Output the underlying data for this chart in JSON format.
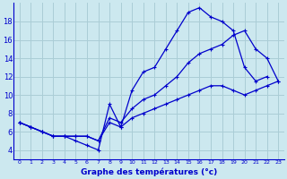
{
  "title": "Graphe des températures (°c)",
  "bg_color": "#cce8ef",
  "grid_color": "#aacdd6",
  "line_color": "#0000cc",
  "xlim": [
    -0.5,
    23.5
  ],
  "ylim": [
    3,
    20
  ],
  "xticks": [
    0,
    1,
    2,
    3,
    4,
    5,
    6,
    7,
    8,
    9,
    10,
    11,
    12,
    13,
    14,
    15,
    16,
    17,
    18,
    19,
    20,
    21,
    22,
    23
  ],
  "yticks": [
    4,
    6,
    8,
    10,
    12,
    14,
    16,
    18
  ],
  "line1_x": [
    0,
    1,
    2,
    3,
    4,
    5,
    6,
    7,
    8,
    9,
    10,
    11,
    12,
    13,
    14,
    15,
    16,
    17,
    18,
    19,
    20,
    21,
    22
  ],
  "line1_y": [
    7,
    6.5,
    6,
    5.5,
    5.5,
    5.0,
    4.5,
    4.0,
    9.0,
    6.5,
    10.5,
    12.5,
    13.0,
    15.0,
    17.0,
    19.0,
    19.5,
    18.5,
    18.0,
    17.0,
    13.0,
    11.5,
    12.0
  ],
  "line2_x": [
    0,
    1,
    2,
    3,
    4,
    5,
    6,
    7,
    8,
    9,
    10,
    11,
    12,
    13,
    14,
    15,
    16,
    17,
    18,
    19,
    20,
    21,
    22,
    23
  ],
  "line2_y": [
    7,
    6.5,
    6.0,
    5.5,
    5.5,
    5.5,
    5.5,
    5.0,
    7.5,
    7.0,
    8.5,
    9.5,
    10.0,
    11.0,
    12.0,
    13.5,
    14.5,
    15.0,
    15.5,
    16.5,
    17.0,
    15.0,
    14.0,
    11.5
  ],
  "line3_x": [
    0,
    1,
    2,
    3,
    4,
    5,
    6,
    7,
    8,
    9,
    10,
    11,
    12,
    13,
    14,
    15,
    16,
    17,
    18,
    19,
    20,
    21,
    22,
    23
  ],
  "line3_y": [
    7,
    6.5,
    6.0,
    5.5,
    5.5,
    5.5,
    5.5,
    5.0,
    7.0,
    6.5,
    7.5,
    8.0,
    8.5,
    9.0,
    9.5,
    10.0,
    10.5,
    11.0,
    11.0,
    10.5,
    10.0,
    10.5,
    11.0,
    11.5
  ]
}
